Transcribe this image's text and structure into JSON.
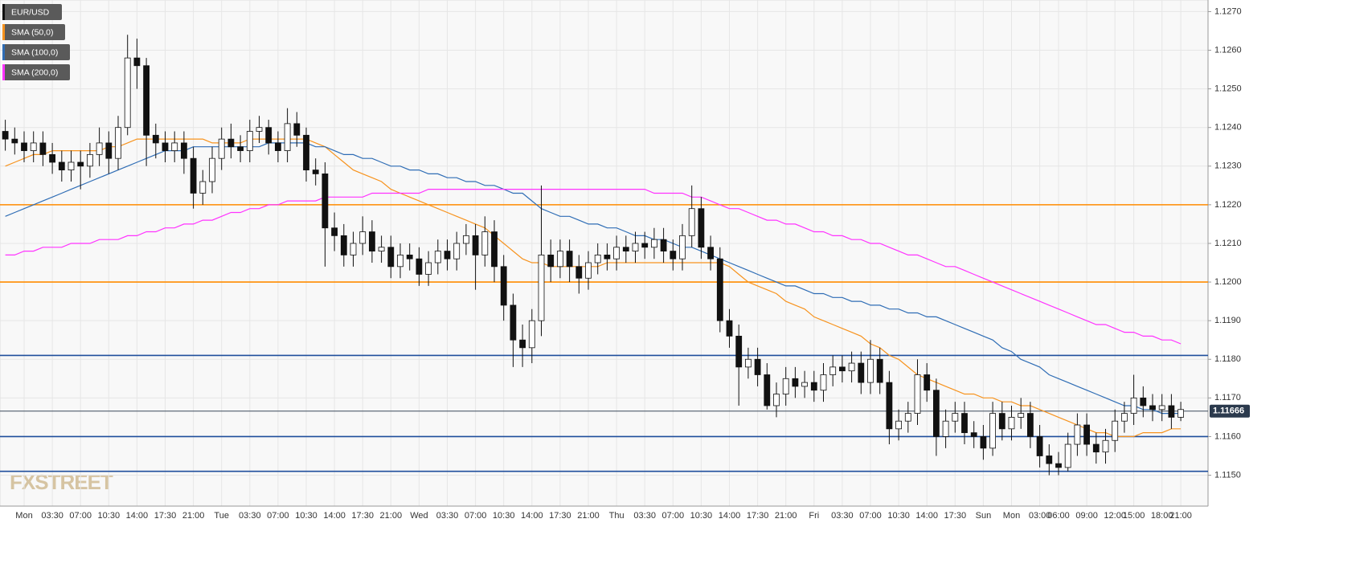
{
  "chart_data": {
    "type": "candlestick",
    "categories": [
      null,
      null,
      "Mon",
      null,
      null,
      "03:30",
      null,
      null,
      "07:00",
      null,
      null,
      "10:30",
      null,
      null,
      "14:00",
      null,
      null,
      "17:30",
      null,
      null,
      "21:00",
      null,
      null,
      "Tue",
      null,
      null,
      "03:30",
      null,
      null,
      "07:00",
      null,
      null,
      "10:30",
      null,
      null,
      "14:00",
      null,
      null,
      "17:30",
      null,
      null,
      "21:00",
      null,
      null,
      "Wed",
      null,
      null,
      "03:30",
      null,
      null,
      "07:00",
      null,
      null,
      "10:30",
      null,
      null,
      "14:00",
      null,
      null,
      "17:30",
      null,
      null,
      "21:00",
      null,
      null,
      "Thu",
      null,
      null,
      "03:30",
      null,
      null,
      "07:00",
      null,
      null,
      "10:30",
      null,
      null,
      "14:00",
      null,
      null,
      "17:30",
      null,
      null,
      "21:00",
      null,
      null,
      "Fri",
      null,
      null,
      "03:30",
      null,
      null,
      "07:00",
      null,
      null,
      "10:30",
      null,
      null,
      "14:00",
      null,
      null,
      "17:30",
      null,
      null,
      "Sun",
      null,
      null,
      "Mon",
      null,
      null,
      "03:00",
      null,
      "06:00",
      null,
      null,
      "09:00",
      null,
      null,
      "12:00",
      null,
      "15:00",
      null,
      null,
      "18:00",
      null,
      "21:00"
    ],
    "candles": {
      "name": "EUR/USD",
      "open": [
        1.1239,
        1.1237,
        1.1236,
        1.1234,
        1.1236,
        1.1233,
        1.1231,
        1.1229,
        1.1231,
        1.123,
        1.1233,
        1.1236,
        1.1232,
        1.124,
        1.1258,
        1.1256,
        1.1238,
        1.1236,
        1.1234,
        1.1236,
        1.1232,
        1.1223,
        1.1226,
        1.1232,
        1.1237,
        1.1235,
        1.1234,
        1.1239,
        1.124,
        1.1236,
        1.1234,
        1.1241,
        1.1238,
        1.1229,
        1.1228,
        1.1214,
        1.1212,
        1.1207,
        1.121,
        1.1213,
        1.1208,
        1.1209,
        1.1204,
        1.1207,
        1.1206,
        1.1202,
        1.1205,
        1.1208,
        1.1206,
        1.121,
        1.1212,
        1.1207,
        1.1213,
        1.1204,
        1.1194,
        1.1185,
        1.1183,
        1.119,
        1.1207,
        1.1204,
        1.1208,
        1.1204,
        1.1201,
        1.1205,
        1.1207,
        1.1206,
        1.1209,
        1.1208,
        1.121,
        1.1209,
        1.1211,
        1.1208,
        1.1206,
        1.1212,
        1.1219,
        1.1209,
        1.1206,
        1.119,
        1.1186,
        1.1178,
        1.118,
        1.1176,
        1.1168,
        1.1171,
        1.1175,
        1.1173,
        1.1174,
        1.1172,
        1.1176,
        1.1178,
        1.1177,
        1.1179,
        1.1174,
        1.118,
        1.1174,
        1.1162,
        1.1164,
        1.1166,
        1.1176,
        1.1172,
        1.116,
        1.1164,
        1.1166,
        1.1161,
        1.116,
        1.1157,
        1.1166,
        1.1162,
        1.1165,
        1.1166,
        1.116,
        1.1155,
        1.1153,
        1.1152,
        1.1158,
        1.1163,
        1.1158,
        1.1156,
        1.1159,
        1.1164,
        1.1166,
        1.117,
        1.1168,
        1.1167,
        1.1168,
        1.1165
      ],
      "high": [
        1.1242,
        1.124,
        1.1239,
        1.1239,
        1.1239,
        1.1236,
        1.1234,
        1.1234,
        1.1234,
        1.1236,
        1.124,
        1.1239,
        1.1243,
        1.1264,
        1.1263,
        1.1258,
        1.1241,
        1.1239,
        1.1239,
        1.1239,
        1.1235,
        1.1229,
        1.1235,
        1.124,
        1.1241,
        1.1238,
        1.1242,
        1.1243,
        1.1242,
        1.1239,
        1.1245,
        1.1244,
        1.124,
        1.1232,
        1.1231,
        1.1218,
        1.1215,
        1.1213,
        1.1217,
        1.1216,
        1.1212,
        1.1212,
        1.121,
        1.121,
        1.1209,
        1.1208,
        1.1211,
        1.1211,
        1.1213,
        1.1215,
        1.1215,
        1.1217,
        1.1216,
        1.1207,
        1.1197,
        1.1189,
        1.1193,
        1.1225,
        1.1211,
        1.1211,
        1.1211,
        1.1207,
        1.1208,
        1.121,
        1.121,
        1.1212,
        1.1212,
        1.1213,
        1.1213,
        1.1214,
        1.1214,
        1.1211,
        1.1215,
        1.1225,
        1.1222,
        1.1212,
        1.1209,
        1.1193,
        1.1189,
        1.1183,
        1.1183,
        1.1179,
        1.1174,
        1.1178,
        1.1178,
        1.1177,
        1.1177,
        1.1179,
        1.1181,
        1.1181,
        1.1182,
        1.1182,
        1.1185,
        1.1183,
        1.1177,
        1.1167,
        1.1169,
        1.118,
        1.1179,
        1.1175,
        1.1167,
        1.1169,
        1.1169,
        1.1164,
        1.1163,
        1.1169,
        1.1169,
        1.1168,
        1.117,
        1.1169,
        1.1163,
        1.1158,
        1.1156,
        1.1161,
        1.1166,
        1.1166,
        1.1161,
        1.1162,
        1.1167,
        1.1169,
        1.1176,
        1.1173,
        1.1171,
        1.1171,
        1.1171,
        1.1169
      ],
      "low": [
        1.1234,
        1.1233,
        1.1231,
        1.1231,
        1.123,
        1.1228,
        1.1226,
        1.1226,
        1.1224,
        1.1227,
        1.123,
        1.1228,
        1.1229,
        1.1238,
        1.125,
        1.123,
        1.1232,
        1.1231,
        1.1231,
        1.1228,
        1.1219,
        1.122,
        1.1223,
        1.1229,
        1.1232,
        1.1231,
        1.1231,
        1.1236,
        1.1233,
        1.1231,
        1.1231,
        1.1235,
        1.1226,
        1.1225,
        1.1204,
        1.1208,
        1.1204,
        1.1204,
        1.1207,
        1.1205,
        1.1205,
        1.1201,
        1.1201,
        1.1203,
        1.1199,
        1.1199,
        1.1202,
        1.1203,
        1.1203,
        1.1207,
        1.1198,
        1.1204,
        1.12,
        1.119,
        1.1178,
        1.1178,
        1.1179,
        1.1186,
        1.12,
        1.1201,
        1.12,
        1.1197,
        1.1198,
        1.1202,
        1.1203,
        1.1203,
        1.1205,
        1.1205,
        1.1206,
        1.1206,
        1.1205,
        1.1203,
        1.1203,
        1.1209,
        1.1206,
        1.1203,
        1.1187,
        1.1183,
        1.1168,
        1.1175,
        1.1173,
        1.1167,
        1.1165,
        1.1168,
        1.117,
        1.117,
        1.1169,
        1.1169,
        1.1173,
        1.1174,
        1.1174,
        1.1171,
        1.1171,
        1.1171,
        1.1158,
        1.1159,
        1.1161,
        1.1163,
        1.1169,
        1.1155,
        1.1157,
        1.1161,
        1.1158,
        1.1157,
        1.1154,
        1.1155,
        1.1159,
        1.1159,
        1.1162,
        1.1157,
        1.1152,
        1.115,
        1.115,
        1.1151,
        1.1155,
        1.1155,
        1.1153,
        1.1153,
        1.1156,
        1.1161,
        1.1163,
        1.1165,
        1.1164,
        1.1164,
        1.1162,
        1.1164
      ],
      "close": [
        1.1237,
        1.1236,
        1.1234,
        1.1236,
        1.1233,
        1.1231,
        1.1229,
        1.1231,
        1.123,
        1.1233,
        1.1236,
        1.1232,
        1.124,
        1.1258,
        1.1256,
        1.1238,
        1.1236,
        1.1234,
        1.1236,
        1.1232,
        1.1223,
        1.1226,
        1.1232,
        1.1237,
        1.1235,
        1.1234,
        1.1239,
        1.124,
        1.1236,
        1.1234,
        1.1241,
        1.1238,
        1.1229,
        1.1228,
        1.1214,
        1.1212,
        1.1207,
        1.121,
        1.1213,
        1.1208,
        1.1209,
        1.1204,
        1.1207,
        1.1206,
        1.1202,
        1.1205,
        1.1208,
        1.1206,
        1.121,
        1.1212,
        1.1207,
        1.1213,
        1.1204,
        1.1194,
        1.1185,
        1.1183,
        1.119,
        1.1207,
        1.1204,
        1.1208,
        1.1204,
        1.1201,
        1.1205,
        1.1207,
        1.1206,
        1.1209,
        1.1208,
        1.121,
        1.1209,
        1.1211,
        1.1208,
        1.1206,
        1.1212,
        1.1219,
        1.1209,
        1.1206,
        1.119,
        1.1186,
        1.1178,
        1.118,
        1.1176,
        1.1168,
        1.1171,
        1.1175,
        1.1173,
        1.1174,
        1.1172,
        1.1176,
        1.1178,
        1.1177,
        1.1179,
        1.1174,
        1.118,
        1.1174,
        1.1162,
        1.1164,
        1.1166,
        1.1176,
        1.1172,
        1.116,
        1.1164,
        1.1166,
        1.1161,
        1.116,
        1.1157,
        1.1166,
        1.1162,
        1.1165,
        1.1166,
        1.116,
        1.1155,
        1.1153,
        1.1152,
        1.1158,
        1.1163,
        1.1158,
        1.1156,
        1.1159,
        1.1164,
        1.1166,
        1.117,
        1.1168,
        1.1167,
        1.1168,
        1.1165,
        1.1167
      ]
    },
    "series": [
      {
        "name": "SMA (50,0)",
        "color": "#f7931e",
        "values": [
          1.123,
          1.1231,
          1.1232,
          1.1233,
          1.1233,
          1.1234,
          1.1234,
          1.1234,
          1.1234,
          1.1234,
          1.1234,
          1.1235,
          1.1235,
          1.1236,
          1.1237,
          1.1237,
          1.1237,
          1.1237,
          1.1237,
          1.1237,
          1.1237,
          1.1237,
          1.1236,
          1.1236,
          1.1236,
          1.1236,
          1.1237,
          1.1237,
          1.1237,
          1.1237,
          1.1237,
          1.1237,
          1.1237,
          1.1236,
          1.1235,
          1.1233,
          1.1231,
          1.1229,
          1.1228,
          1.1227,
          1.1226,
          1.1224,
          1.1223,
          1.1222,
          1.1221,
          1.122,
          1.1219,
          1.1218,
          1.1217,
          1.1216,
          1.1215,
          1.1214,
          1.1212,
          1.121,
          1.1208,
          1.1206,
          1.1205,
          1.1205,
          1.1204,
          1.1204,
          1.1204,
          1.1204,
          1.1204,
          1.1204,
          1.1205,
          1.1205,
          1.1205,
          1.1205,
          1.1205,
          1.1205,
          1.1205,
          1.1205,
          1.1205,
          1.1205,
          1.1205,
          1.1205,
          1.1205,
          1.1204,
          1.1202,
          1.12,
          1.1199,
          1.1198,
          1.1197,
          1.1195,
          1.1194,
          1.1193,
          1.1191,
          1.119,
          1.1189,
          1.1188,
          1.1187,
          1.1186,
          1.1184,
          1.1183,
          1.1181,
          1.118,
          1.1178,
          1.1176,
          1.1175,
          1.1174,
          1.1173,
          1.1172,
          1.1171,
          1.1171,
          1.117,
          1.117,
          1.1169,
          1.1169,
          1.1168,
          1.1168,
          1.1167,
          1.1166,
          1.1165,
          1.1164,
          1.1163,
          1.1162,
          1.1161,
          1.1161,
          1.116,
          1.116,
          1.116,
          1.1161,
          1.1161,
          1.1161,
          1.1162,
          1.1162
        ]
      },
      {
        "name": "SMA (100,0)",
        "color": "#2f6db5",
        "values": [
          1.1217,
          1.1218,
          1.1219,
          1.122,
          1.1221,
          1.1222,
          1.1223,
          1.1224,
          1.1225,
          1.1226,
          1.1227,
          1.1228,
          1.1229,
          1.123,
          1.1231,
          1.1232,
          1.1233,
          1.1234,
          1.1234,
          1.1234,
          1.1235,
          1.1235,
          1.1235,
          1.1235,
          1.1235,
          1.1235,
          1.1235,
          1.1235,
          1.1236,
          1.1236,
          1.1236,
          1.1236,
          1.1236,
          1.1235,
          1.1235,
          1.1234,
          1.1233,
          1.1233,
          1.1232,
          1.1232,
          1.1231,
          1.123,
          1.123,
          1.1229,
          1.1229,
          1.1228,
          1.1228,
          1.1227,
          1.1227,
          1.1226,
          1.1226,
          1.1225,
          1.1225,
          1.1224,
          1.1223,
          1.1223,
          1.1221,
          1.1219,
          1.1218,
          1.1217,
          1.1217,
          1.1216,
          1.1215,
          1.1215,
          1.1214,
          1.1214,
          1.1213,
          1.1212,
          1.1212,
          1.1211,
          1.1211,
          1.121,
          1.1209,
          1.1209,
          1.1208,
          1.1207,
          1.1206,
          1.1205,
          1.1204,
          1.1203,
          1.1202,
          1.1201,
          1.12,
          1.1199,
          1.1199,
          1.1198,
          1.1197,
          1.1197,
          1.1196,
          1.1196,
          1.1195,
          1.1195,
          1.1194,
          1.1194,
          1.1193,
          1.1193,
          1.1192,
          1.1192,
          1.1191,
          1.1191,
          1.119,
          1.1189,
          1.1188,
          1.1187,
          1.1186,
          1.1185,
          1.1183,
          1.1182,
          1.118,
          1.1179,
          1.1178,
          1.1176,
          1.1175,
          1.1174,
          1.1173,
          1.1172,
          1.1171,
          1.117,
          1.1169,
          1.1168,
          1.1168,
          1.1167,
          1.1167,
          1.1166,
          1.1166,
          1.1166
        ]
      },
      {
        "name": "SMA (200,0)",
        "color": "#ff33ff",
        "values": [
          1.1207,
          1.1207,
          1.1208,
          1.1208,
          1.1209,
          1.1209,
          1.1209,
          1.121,
          1.121,
          1.121,
          1.1211,
          1.1211,
          1.1211,
          1.1212,
          1.1212,
          1.1213,
          1.1213,
          1.1214,
          1.1214,
          1.1215,
          1.1215,
          1.1216,
          1.1216,
          1.1217,
          1.1218,
          1.1218,
          1.1219,
          1.1219,
          1.122,
          1.122,
          1.1221,
          1.1221,
          1.1221,
          1.1221,
          1.1222,
          1.1222,
          1.1222,
          1.1222,
          1.1222,
          1.1223,
          1.1223,
          1.1223,
          1.1223,
          1.1223,
          1.1223,
          1.1224,
          1.1224,
          1.1224,
          1.1224,
          1.1224,
          1.1224,
          1.1224,
          1.1224,
          1.1224,
          1.1224,
          1.1224,
          1.1224,
          1.1224,
          1.1224,
          1.1224,
          1.1224,
          1.1224,
          1.1224,
          1.1224,
          1.1224,
          1.1224,
          1.1224,
          1.1224,
          1.1224,
          1.1223,
          1.1223,
          1.1223,
          1.1223,
          1.1222,
          1.1222,
          1.1221,
          1.122,
          1.1219,
          1.1219,
          1.1218,
          1.1217,
          1.1216,
          1.1216,
          1.1215,
          1.1215,
          1.1214,
          1.1213,
          1.1213,
          1.1212,
          1.1212,
          1.1211,
          1.1211,
          1.121,
          1.121,
          1.1209,
          1.1208,
          1.1207,
          1.1207,
          1.1206,
          1.1205,
          1.1204,
          1.1204,
          1.1203,
          1.1202,
          1.1201,
          1.12,
          1.1199,
          1.1198,
          1.1197,
          1.1196,
          1.1195,
          1.1194,
          1.1193,
          1.1192,
          1.1191,
          1.119,
          1.1189,
          1.1189,
          1.1188,
          1.1187,
          1.1187,
          1.1186,
          1.1186,
          1.1185,
          1.1185,
          1.1184
        ]
      }
    ],
    "ylim": [
      1.1142,
      1.1273
    ],
    "yticks": [
      {
        "value": 1.115,
        "label": "1.1150"
      },
      {
        "value": 1.116,
        "label": "1.1160"
      },
      {
        "value": 1.117,
        "label": "1.1170"
      },
      {
        "value": 1.118,
        "label": "1.1180"
      },
      {
        "value": 1.119,
        "label": "1.1190"
      },
      {
        "value": 1.12,
        "label": "1.1200"
      },
      {
        "value": 1.121,
        "label": "1.1210"
      },
      {
        "value": 1.122,
        "label": "1.1220"
      },
      {
        "value": 1.123,
        "label": "1.1230"
      },
      {
        "value": 1.124,
        "label": "1.1240"
      },
      {
        "value": 1.125,
        "label": "1.1250"
      },
      {
        "value": 1.126,
        "label": "1.1260"
      },
      {
        "value": 1.127,
        "label": "1.1270"
      }
    ],
    "levels": [
      {
        "value": 1.122,
        "color": "#ff8c00"
      },
      {
        "value": 1.12,
        "color": "#ff8c00"
      },
      {
        "value": 1.1181,
        "color": "#1f4e9c"
      },
      {
        "value": 1.116,
        "color": "#1f4e9c"
      },
      {
        "value": 1.1151,
        "color": "#1f4e9c"
      }
    ],
    "last_price": {
      "value": 1.11666,
      "label": "1.11666"
    },
    "watermark": "FXSTREET",
    "grid": true
  }
}
